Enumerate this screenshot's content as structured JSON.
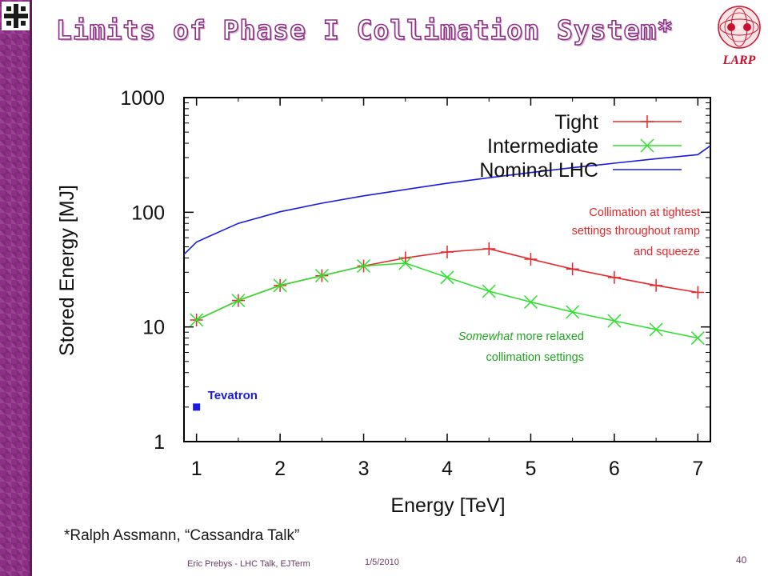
{
  "slide": {
    "title": "Limits of Phase I Collimation System*",
    "logo_text": "LARP",
    "citation": "*Ralph Assmann, “Cassandra Talk”",
    "footer_author": "Eric Prebys - LHC Talk, EJTerm",
    "footer_date": "1/5/2010",
    "page_number": "40",
    "colors": {
      "sidebar": "#8d2f86",
      "title_stroke": "#8d2f86",
      "larp_red": "#c8102e"
    }
  },
  "chart_data": {
    "type": "line",
    "xlabel": "Energy [TeV]",
    "ylabel": "Stored Energy [MJ]",
    "xlim": [
      0.85,
      7.15
    ],
    "ylim": [
      1,
      1000
    ],
    "y_scale": "log",
    "xticks": [
      "1",
      "2",
      "3",
      "4",
      "5",
      "6",
      "7"
    ],
    "yticks": [
      "1",
      "10",
      "100",
      "1000"
    ],
    "legend_position": "top-right",
    "series": [
      {
        "name": "Tight",
        "color": "#e8262b",
        "marker": "+",
        "x": [
          1,
          1.5,
          2,
          2.5,
          3,
          3.5,
          4,
          4.5,
          5,
          5.5,
          6,
          6.5,
          7
        ],
        "y": [
          11.5,
          17,
          23,
          28,
          34,
          40,
          45,
          48,
          39,
          32,
          27,
          23,
          20
        ]
      },
      {
        "name": "Intermediate",
        "color": "#2ee02e",
        "marker": "x",
        "x": [
          1,
          1.5,
          2,
          2.5,
          3,
          3.5,
          4,
          4.5,
          5,
          5.5,
          6,
          6.5,
          7
        ],
        "y": [
          11.5,
          17,
          23,
          28,
          34,
          36,
          27,
          20.5,
          16.5,
          13.5,
          11.3,
          9.5,
          8
        ]
      },
      {
        "name": "Nominal LHC",
        "color": "#1a1ae6",
        "marker": "none",
        "x": [
          0.85,
          1,
          1.5,
          2,
          2.5,
          3,
          3.5,
          4,
          4.5,
          5,
          5.5,
          6,
          6.5,
          7,
          7.15
        ],
        "y": [
          43,
          55,
          80,
          101,
          120,
          139,
          158,
          179,
          200,
          222,
          245,
          268,
          293,
          318,
          380
        ]
      }
    ],
    "points": [
      {
        "name": "Tevatron",
        "x": 1,
        "y": 2,
        "color": "#1a1ae6"
      }
    ],
    "annotations": {
      "tight": [
        "Collimation at tightest",
        "settings throughout ramp",
        "and squeeze"
      ],
      "relaxed_emph": "Somewhat",
      "relaxed_line1": " more relaxed",
      "relaxed_line2": "collimation settings"
    }
  }
}
